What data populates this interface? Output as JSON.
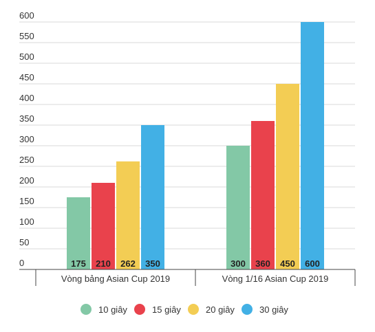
{
  "chart_data": {
    "type": "bar",
    "title": "",
    "xlabel": "",
    "ylabel": "",
    "ylim": [
      0,
      600
    ],
    "yticks": [
      0,
      50,
      100,
      150,
      200,
      250,
      300,
      350,
      400,
      450,
      500,
      550,
      600
    ],
    "grid": true,
    "legend_position": "bottom-center",
    "categories": [
      "Vòng bảng Asian Cup 2019",
      "Vòng 1/16 Asian Cup 2019"
    ],
    "series": [
      {
        "name": "10 giây",
        "color": "#83c8a6",
        "values": [
          175,
          300
        ]
      },
      {
        "name": "15 giây",
        "color": "#e9424c",
        "values": [
          210,
          360
        ]
      },
      {
        "name": "20 giây",
        "color": "#f3cd54",
        "values": [
          262,
          450
        ]
      },
      {
        "name": "30 giây",
        "color": "#42b0e5",
        "values": [
          350,
          600
        ]
      }
    ]
  }
}
